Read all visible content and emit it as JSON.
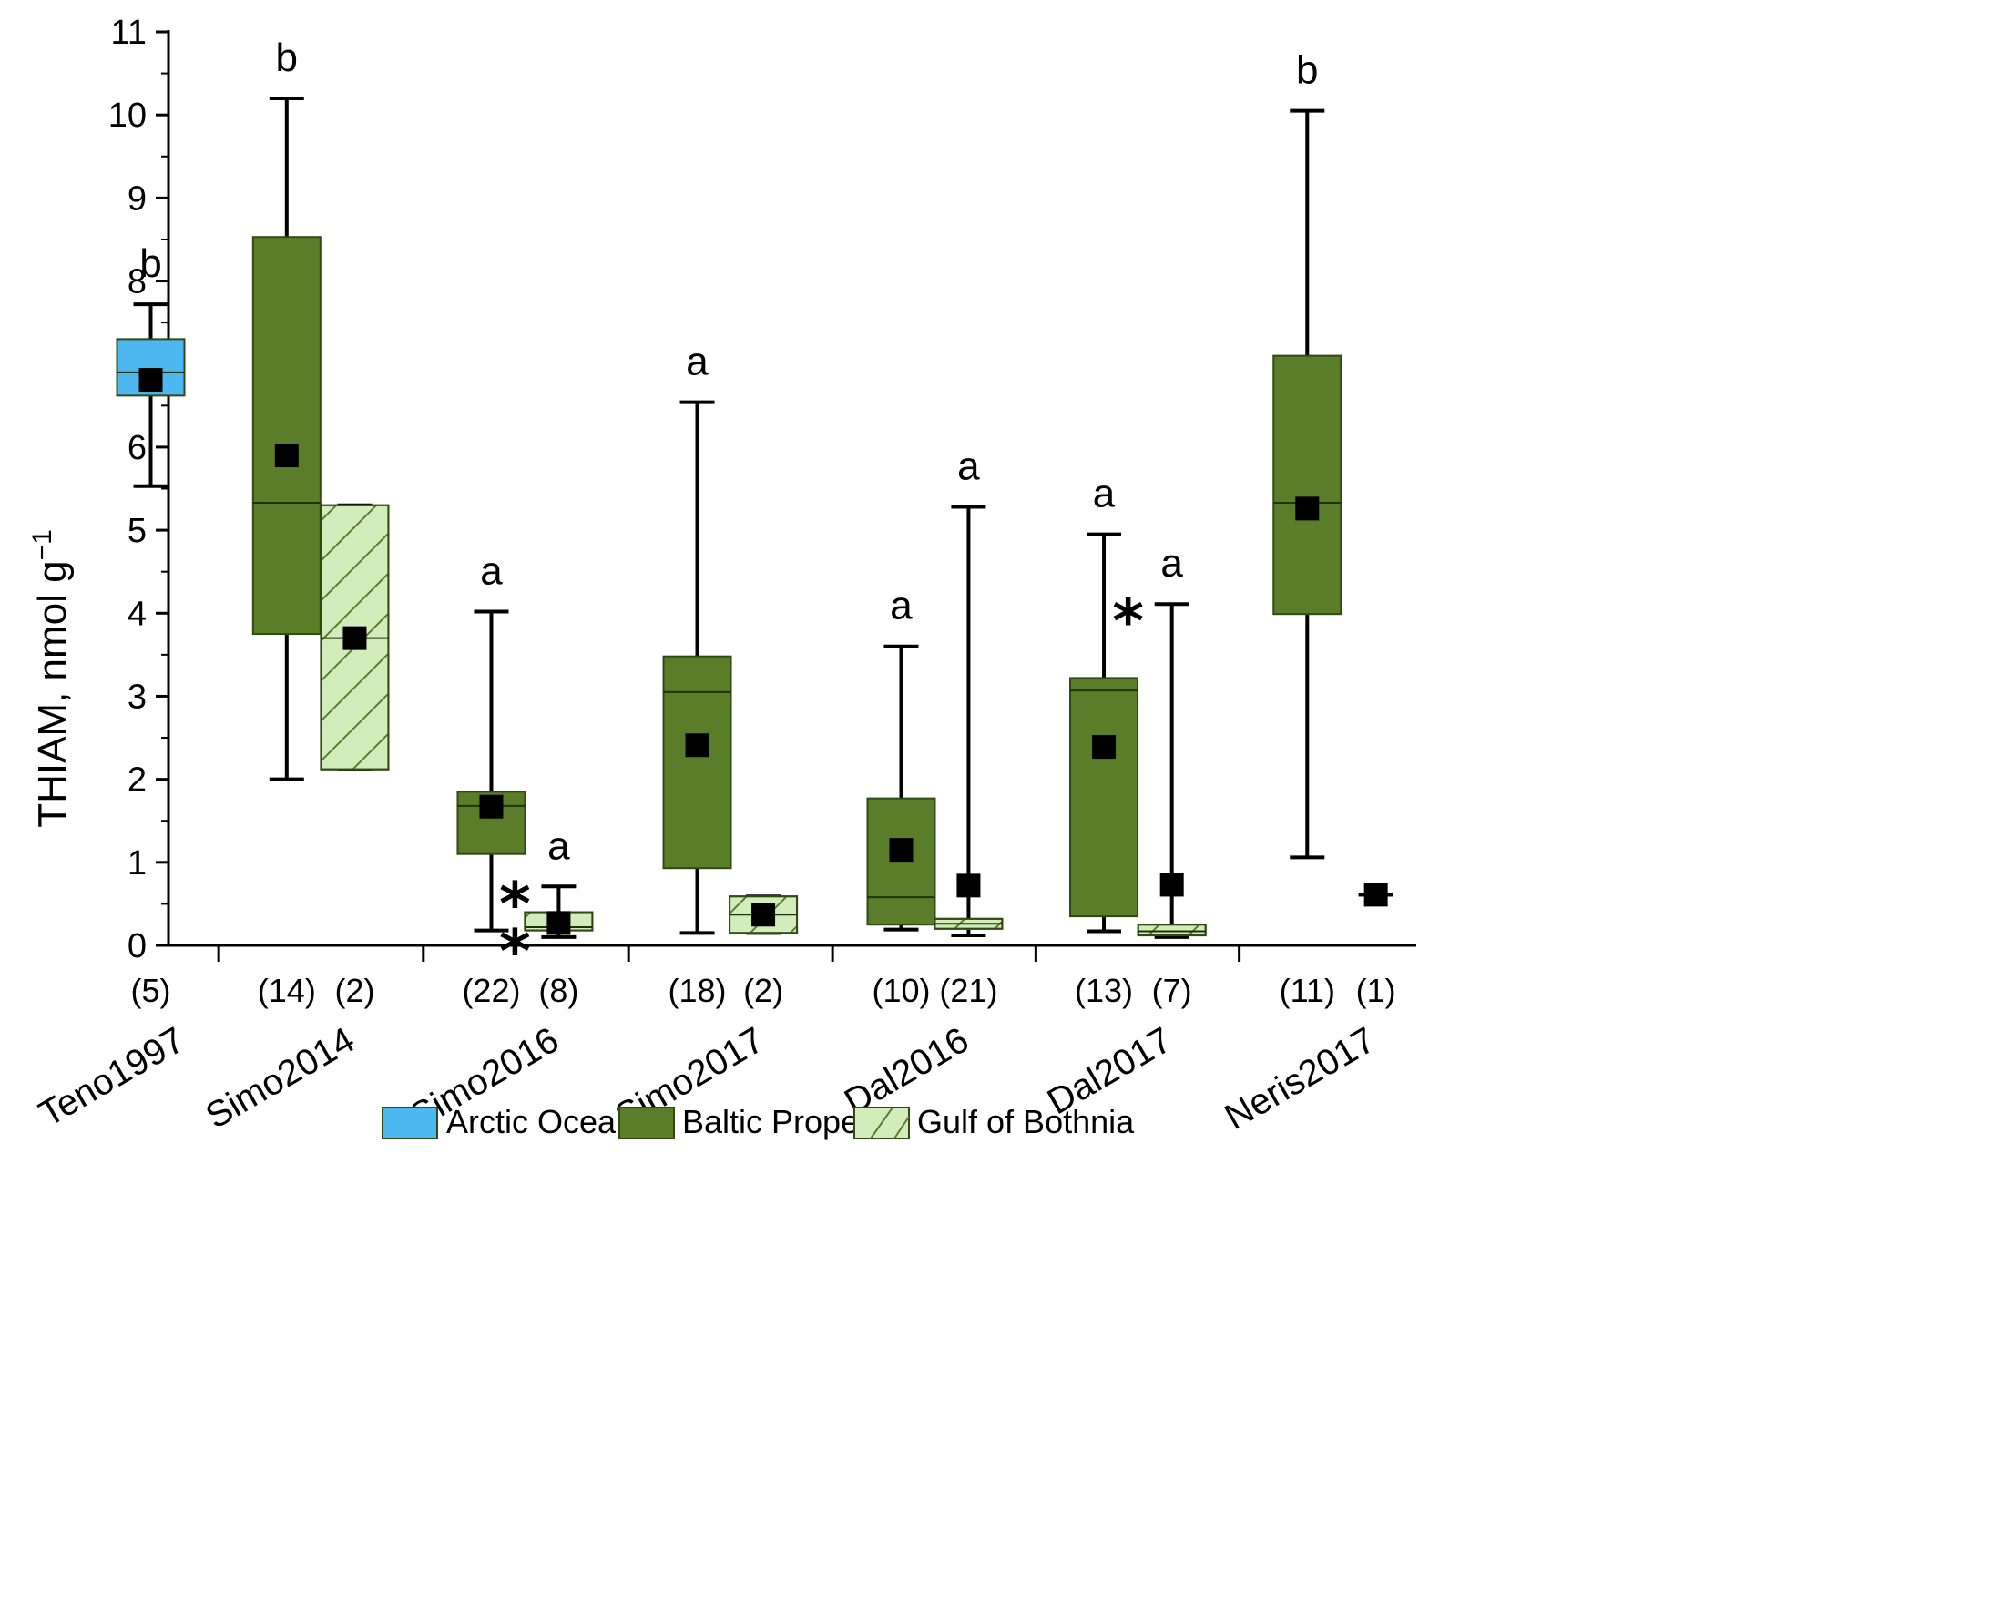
{
  "chart_data": {
    "type": "box",
    "ylabel": "THIAM, nmol g",
    "ylabel_superscript": "−1",
    "ylim": [
      0,
      11
    ],
    "yticks": [
      "0",
      "1",
      "2",
      "3",
      "4",
      "5",
      "6",
      "7",
      "8",
      "9",
      "10",
      "11"
    ],
    "legend": [
      {
        "name": "Arctic Ocean",
        "color": "#4db8ef",
        "pattern": "solid"
      },
      {
        "name": "Baltic Proper",
        "color": "#5a7d2a",
        "pattern": "solid"
      },
      {
        "name": "Gulf of Bothnia",
        "color": "#d2ecbc",
        "pattern": "hatch"
      }
    ],
    "groups": [
      {
        "label": "Teno1997",
        "boxes": [
          {
            "region": "Arctic Ocean",
            "n": "(5)",
            "whisker_low": 5.53,
            "q1": 6.62,
            "median": 6.9,
            "q3": 7.3,
            "whisker_high": 7.72,
            "mean": 6.81,
            "letter": "b",
            "star": ""
          }
        ]
      },
      {
        "label": "Simo2014",
        "boxes": [
          {
            "region": "Baltic Proper",
            "n": "(14)",
            "whisker_low": 2.0,
            "q1": 3.75,
            "median": 5.33,
            "q3": 8.53,
            "whisker_high": 10.2,
            "mean": 5.9,
            "letter": "b",
            "star": ""
          },
          {
            "region": "Gulf of Bothnia",
            "n": "(2)",
            "whisker_low": 2.12,
            "q1": 2.12,
            "median": 3.7,
            "q3": 5.3,
            "whisker_high": 5.3,
            "mean": 3.7,
            "letter": "",
            "star": ""
          }
        ]
      },
      {
        "label": "Simo2016",
        "boxes": [
          {
            "region": "Baltic Proper",
            "n": "(22)",
            "whisker_low": 0.18,
            "q1": 1.1,
            "median": 1.68,
            "q3": 1.85,
            "whisker_high": 4.02,
            "mean": 1.67,
            "letter": "a",
            "star": ""
          },
          {
            "region": "Gulf of Bothnia",
            "n": "(8)",
            "whisker_low": 0.1,
            "q1": 0.18,
            "median": 0.22,
            "q3": 0.4,
            "whisker_high": 0.71,
            "mean": 0.27,
            "letter": "a",
            "star": "**"
          }
        ]
      },
      {
        "label": "Simo2017",
        "boxes": [
          {
            "region": "Baltic Proper",
            "n": "(18)",
            "whisker_low": 0.15,
            "q1": 0.93,
            "median": 3.05,
            "q3": 3.48,
            "whisker_high": 6.54,
            "mean": 2.41,
            "letter": "a",
            "star": ""
          },
          {
            "region": "Gulf of Bothnia",
            "n": "(2)",
            "whisker_low": 0.15,
            "q1": 0.15,
            "median": 0.37,
            "q3": 0.59,
            "whisker_high": 0.59,
            "mean": 0.37,
            "letter": "",
            "star": ""
          }
        ]
      },
      {
        "label": "Dal2016",
        "boxes": [
          {
            "region": "Baltic Proper",
            "n": "(10)",
            "whisker_low": 0.19,
            "q1": 0.25,
            "median": 0.58,
            "q3": 1.77,
            "whisker_high": 3.6,
            "mean": 1.15,
            "letter": "a",
            "star": ""
          },
          {
            "region": "Gulf of Bothnia",
            "n": "(21)",
            "whisker_low": 0.12,
            "q1": 0.2,
            "median": 0.26,
            "q3": 0.32,
            "whisker_high": 5.28,
            "mean": 0.72,
            "letter": "a",
            "star": ""
          }
        ]
      },
      {
        "label": "Dal2017",
        "boxes": [
          {
            "region": "Baltic Proper",
            "n": "(13)",
            "whisker_low": 0.17,
            "q1": 0.35,
            "median": 3.07,
            "q3": 3.22,
            "whisker_high": 4.95,
            "mean": 2.39,
            "letter": "a",
            "star": ""
          },
          {
            "region": "Gulf of Bothnia",
            "n": "(7)",
            "whisker_low": 0.1,
            "q1": 0.12,
            "median": 0.17,
            "q3": 0.25,
            "whisker_high": 4.11,
            "mean": 0.73,
            "letter": "a",
            "star": "*"
          }
        ]
      },
      {
        "label": "Neris2017",
        "boxes": [
          {
            "region": "Baltic Proper",
            "n": "(11)",
            "whisker_low": 1.06,
            "q1": 3.99,
            "median": 5.33,
            "q3": 7.1,
            "whisker_high": 10.05,
            "mean": 5.26,
            "letter": "b",
            "star": ""
          },
          {
            "region": "Gulf of Bothnia",
            "n": "(1)",
            "whisker_low": 0.61,
            "q1": 0.61,
            "median": 0.61,
            "q3": 0.61,
            "whisker_high": 0.61,
            "mean": 0.61,
            "letter": "",
            "star": ""
          }
        ]
      }
    ]
  }
}
